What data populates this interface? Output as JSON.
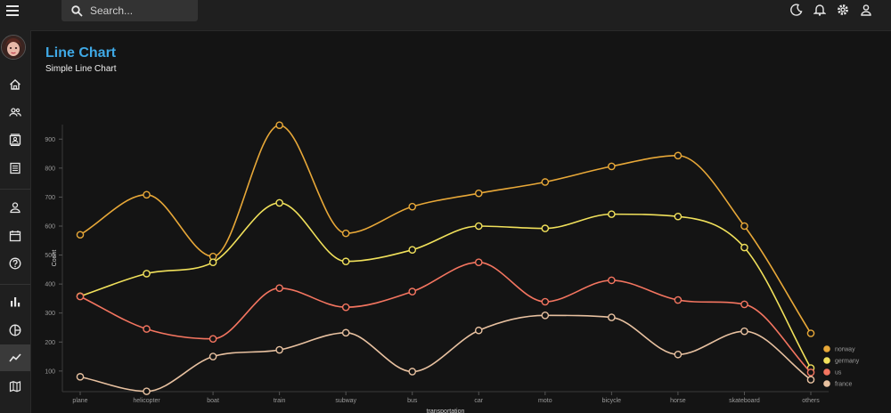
{
  "search": {
    "placeholder": "Search..."
  },
  "header": {
    "title": "Line Chart",
    "subtitle": "Simple Line Chart"
  },
  "sidebar": {
    "items": [
      {
        "name": "nav-home",
        "icon": "home-icon"
      },
      {
        "name": "nav-team",
        "icon": "group-icon"
      },
      {
        "name": "nav-contacts",
        "icon": "contacts-icon"
      },
      {
        "name": "nav-invoices",
        "icon": "receipt-icon"
      },
      {
        "name": "nav-profile",
        "icon": "person-icon"
      },
      {
        "name": "nav-calendar",
        "icon": "calendar-icon"
      },
      {
        "name": "nav-faq",
        "icon": "help-icon"
      },
      {
        "name": "nav-bar-chart",
        "icon": "bar-chart-icon"
      },
      {
        "name": "nav-pie-chart",
        "icon": "pie-chart-icon"
      },
      {
        "name": "nav-line-chart",
        "icon": "line-chart-icon",
        "active": true
      },
      {
        "name": "nav-geography",
        "icon": "map-icon"
      }
    ]
  },
  "chart_data": {
    "type": "line",
    "xlabel": "transportation",
    "ylabel": "Count",
    "ylim": [
      35,
      950
    ],
    "yticks": [
      100,
      200,
      300,
      400,
      500,
      600,
      700,
      800,
      900
    ],
    "categories": [
      "plane",
      "helicopter",
      "boat",
      "train",
      "subway",
      "bus",
      "car",
      "moto",
      "bicycle",
      "horse",
      "skateboard",
      "others"
    ],
    "legend_position": "bottom-right",
    "grid": false,
    "series": [
      {
        "name": "norway",
        "color": "#e8a838",
        "values": [
          570,
          708,
          495,
          948,
          575,
          667,
          713,
          752,
          806,
          843,
          600,
          230
        ]
      },
      {
        "name": "germany",
        "color": "#f1e15b",
        "values": [
          358,
          436,
          475,
          680,
          478,
          518,
          600,
          592,
          641,
          633,
          526,
          110
        ]
      },
      {
        "name": "us",
        "color": "#f47560",
        "values": [
          357,
          245,
          211,
          386,
          320,
          374,
          475,
          339,
          413,
          345,
          330,
          95
        ]
      },
      {
        "name": "france",
        "color": "#e8c1a0",
        "values": [
          80,
          30,
          150,
          173,
          232,
          98,
          240,
          292,
          285,
          157,
          237,
          70
        ]
      }
    ]
  }
}
